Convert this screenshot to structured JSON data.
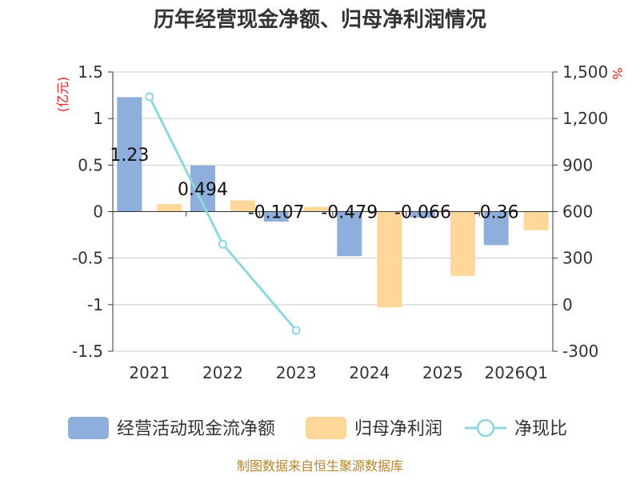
{
  "chart_data": {
    "type": "bar",
    "title": "历年经营现金净额、归母净利润情况",
    "categories": [
      "2021",
      "2022",
      "2023",
      "2024",
      "2025",
      "2026Q1"
    ],
    "left_axis": {
      "unit": "(亿元)",
      "ylim": [
        -1.5,
        1.5
      ],
      "ticks": [
        1.5,
        1,
        0.5,
        0,
        -0.5,
        -1,
        -1.5
      ],
      "tick_labels": [
        "1.5",
        "1",
        "0.5",
        "0",
        "-0.5",
        "-1",
        "-1.5"
      ]
    },
    "right_axis": {
      "unit": "%",
      "ylim": [
        -300,
        1500
      ],
      "ticks": [
        1500,
        1200,
        900,
        600,
        300,
        0,
        -300
      ],
      "tick_labels": [
        "1,500",
        "1,200",
        "900",
        "600",
        "300",
        "0",
        "-300"
      ]
    },
    "series": [
      {
        "name": "经营活动现金流净额",
        "type": "bar",
        "axis": "left",
        "color": "#8eaedb",
        "values": [
          1.23,
          0.494,
          -0.107,
          -0.479,
          -0.066,
          -0.36
        ],
        "labels": [
          "1.23",
          "0.494",
          "-0.107",
          "-0.479",
          "-0.066",
          "-0.36"
        ]
      },
      {
        "name": "归母净利润",
        "type": "bar",
        "axis": "left",
        "color": "#ffd899",
        "values": [
          0.08,
          0.12,
          0.05,
          -1.03,
          -0.69,
          -0.2
        ]
      },
      {
        "name": "净现比",
        "type": "line",
        "axis": "right",
        "color": "#8ed8dd",
        "values": [
          1340,
          390,
          -165,
          null,
          null,
          null
        ]
      }
    ],
    "grid": true,
    "legend": "bottom"
  },
  "source": "制图数据来自恒生聚源数据库"
}
